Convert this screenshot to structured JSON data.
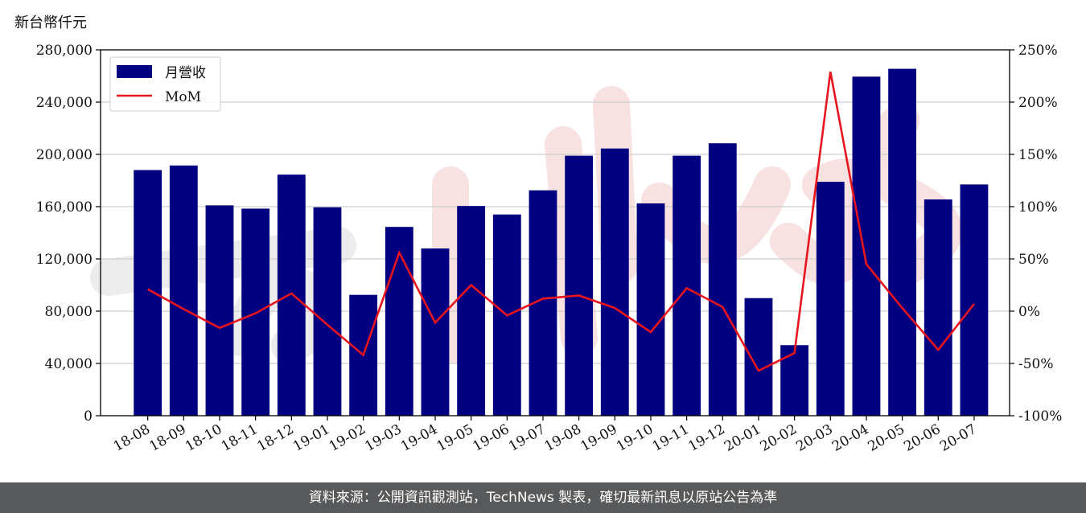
{
  "chart_data": {
    "type": "bar",
    "ylabel": "新台幣仟元",
    "categories": [
      "18-08",
      "18-09",
      "18-10",
      "18-11",
      "18-12",
      "19-01",
      "19-02",
      "19-03",
      "19-04",
      "19-05",
      "19-06",
      "19-07",
      "19-08",
      "19-09",
      "19-10",
      "19-11",
      "19-12",
      "20-01",
      "20-02",
      "20-03",
      "20-04",
      "20-05",
      "20-06",
      "20-07"
    ],
    "series": [
      {
        "name": "月營收",
        "type": "bar",
        "axis": "left",
        "color": "#000080",
        "values": [
          188000,
          191500,
          161000,
          158500,
          184500,
          159500,
          92500,
          144500,
          128000,
          160500,
          154000,
          172500,
          199000,
          204500,
          162500,
          199000,
          208500,
          90000,
          54000,
          179000,
          259500,
          265500,
          165500,
          177000
        ]
      },
      {
        "name": "MoM",
        "type": "line",
        "axis": "right",
        "color": "#e8141e",
        "values": [
          21,
          2,
          -16,
          -2,
          17,
          -13,
          -42,
          56,
          -11,
          25,
          -4,
          12,
          15,
          3,
          -20,
          22,
          4,
          -57,
          -40,
          229,
          45,
          3,
          -37,
          7
        ]
      }
    ],
    "left_axis": {
      "min": 0,
      "max": 280000,
      "ticks": [
        0,
        40000,
        80000,
        120000,
        160000,
        200000,
        240000,
        280000
      ],
      "tick_labels": [
        "0",
        "40,000",
        "80,000",
        "120,000",
        "160,000",
        "200,000",
        "240,000",
        "280,000"
      ]
    },
    "right_axis": {
      "min": -100,
      "max": 250,
      "ticks": [
        -100,
        -50,
        0,
        50,
        100,
        150,
        200,
        250
      ],
      "tick_labels": [
        "-100%",
        "-50%",
        "0%",
        "50%",
        "100%",
        "150%",
        "200%",
        "250%"
      ]
    },
    "grid": "horizontal",
    "legend": "top-left"
  },
  "footer": {
    "text": "資料來源：公開資訊觀測站，TechNews 製表，確切最新訊息以原站公告為準"
  }
}
